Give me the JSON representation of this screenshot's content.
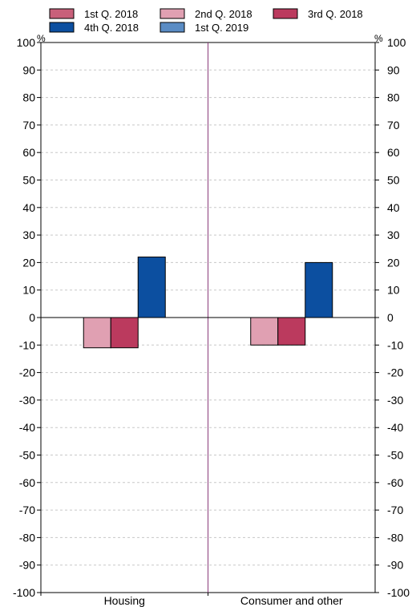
{
  "chart_data": {
    "type": "bar",
    "title": "",
    "xlabel": "",
    "ylabel": "",
    "unit_left": "%",
    "unit_right": "%",
    "ylim": [
      -100,
      100
    ],
    "yticks": [
      100,
      90,
      80,
      70,
      60,
      50,
      40,
      30,
      20,
      10,
      0,
      -10,
      -20,
      -30,
      -40,
      -50,
      -60,
      -70,
      -80,
      -90,
      -100
    ],
    "grid": true,
    "legend_position": "top",
    "categories": [
      "Housing",
      "Consumer and other"
    ],
    "series": [
      {
        "name": "1st Q. 2018",
        "color": "#c8607a",
        "values": [
          null,
          null
        ]
      },
      {
        "name": "2nd Q. 2018",
        "color": "#e0a0b2",
        "values": [
          -11,
          -10
        ]
      },
      {
        "name": "3rd Q. 2018",
        "color": "#bb3a5e",
        "values": [
          -11,
          -10
        ]
      },
      {
        "name": "4th Q. 2018",
        "color": "#0c4fa0",
        "values": [
          22,
          20
        ]
      },
      {
        "name": "1st Q. 2019",
        "color": "#5a8cc4",
        "values": [
          null,
          null
        ]
      }
    ]
  }
}
